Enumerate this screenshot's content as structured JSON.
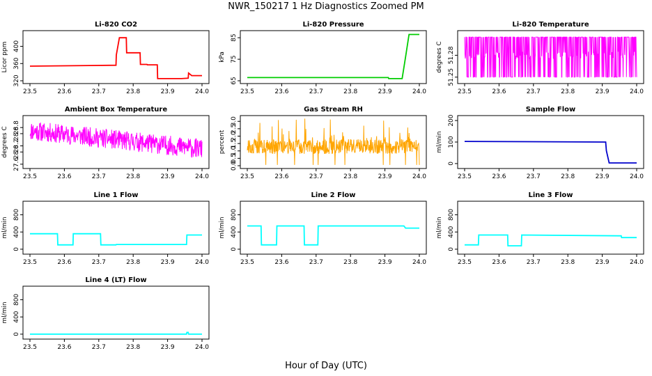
{
  "figure": {
    "title": "NWR_150217  1 Hz Diagnostics Zoomed PM",
    "xlabel": "Hour of Day (UTC)"
  },
  "chart_data": [
    {
      "type": "line",
      "title": "Li-820 CO2",
      "ylabel": "Licor ppm",
      "color": "#ff0000",
      "xlim": [
        23.5,
        24.0
      ],
      "ylim": [
        320,
        430
      ],
      "xticks": [
        "23.5",
        "23.6",
        "23.7",
        "23.8",
        "23.9",
        "24.0"
      ],
      "yticks": [
        "320",
        "360",
        "400"
      ],
      "series": [
        {
          "x": [
            23.5,
            23.75,
            23.751,
            23.76,
            23.78,
            23.781,
            23.82,
            23.821,
            23.84,
            23.841,
            23.87,
            23.871,
            23.94,
            23.96,
            23.961,
            23.97,
            24.0
          ],
          "y": [
            354,
            356,
            380,
            420,
            420,
            385,
            385,
            358,
            358,
            357,
            357,
            325,
            325,
            326,
            338,
            332,
            332
          ]
        }
      ]
    },
    {
      "type": "line",
      "title": "Li-820 Pressure",
      "ylabel": "kPa",
      "color": "#00cc00",
      "xlim": [
        23.5,
        24.0
      ],
      "ylim": [
        65,
        87
      ],
      "xticks": [
        "23.5",
        "23.6",
        "23.7",
        "23.8",
        "23.9",
        "24.0"
      ],
      "yticks": [
        "65",
        "75",
        "85"
      ],
      "series": [
        {
          "x": [
            23.5,
            23.91,
            23.911,
            23.95,
            23.96,
            23.97,
            24.0
          ],
          "y": [
            66.5,
            66.5,
            66.0,
            66.0,
            76,
            86.5,
            86.5
          ]
        }
      ]
    },
    {
      "type": "line",
      "title": "Li-820 Temperature",
      "ylabel": "degrees C",
      "color": "#ff00ff",
      "xlim": [
        23.5,
        24.0
      ],
      "ylim": [
        51.245,
        51.31
      ],
      "xticks": [
        "23.5",
        "23.6",
        "23.7",
        "23.8",
        "23.9",
        "24.0"
      ],
      "yticks": [
        "51.25",
        "51.28"
      ],
      "noise": {
        "kind": "binary",
        "low": 51.25,
        "high": 51.305,
        "mid": 51.28,
        "seed": 7
      }
    },
    {
      "type": "line",
      "title": "Ambient Box Temperature",
      "ylabel": "degrees C",
      "color": "#ff00ff",
      "xlim": [
        23.5,
        24.0
      ],
      "ylim": [
        27.55,
        29.1
      ],
      "xticks": [
        "23.5",
        "23.6",
        "23.7",
        "23.8",
        "23.9",
        "24.0"
      ],
      "yticks": [
        "27.6",
        "28.0",
        "28.2",
        "28.6",
        "28.8"
      ],
      "noise": {
        "kind": "band",
        "start": 28.7,
        "end": 28.1,
        "amp": 0.32,
        "seed": 11
      }
    },
    {
      "type": "line",
      "title": "Gas Stream RH",
      "ylabel": "percent",
      "color": "#ffa500",
      "xlim": [
        23.5,
        24.0
      ],
      "ylim": [
        0.0,
        3.2
      ],
      "xticks": [
        "23.5",
        "23.6",
        "23.7",
        "23.8",
        "23.9",
        "24.0"
      ],
      "yticks": [
        "0.0",
        "0.5",
        "1.0",
        "1.5",
        "2.0",
        "2.5",
        "3.0"
      ],
      "noise": {
        "kind": "spiky",
        "base": 1.3,
        "amp": 0.5,
        "spike": 1.6,
        "seed": 23
      }
    },
    {
      "type": "line",
      "title": "Sample Flow",
      "ylabel": "ml/min",
      "color": "#0000cc",
      "xlim": [
        23.5,
        24.0
      ],
      "ylim": [
        -10,
        210
      ],
      "xticks": [
        "23.5",
        "23.6",
        "23.7",
        "23.8",
        "23.9",
        "24.0"
      ],
      "yticks": [
        "0",
        "100",
        "200"
      ],
      "series": [
        {
          "x": [
            23.5,
            23.91,
            23.912,
            23.92,
            24.0
          ],
          "y": [
            103,
            100,
            60,
            3,
            3
          ]
        }
      ]
    },
    {
      "type": "line",
      "title": "Line 1 Flow",
      "ylabel": "ml/min",
      "color": "#00ffff",
      "xlim": [
        23.5,
        24.0
      ],
      "ylim": [
        -50,
        1050
      ],
      "xticks": [
        "23.5",
        "23.6",
        "23.7",
        "23.8",
        "23.9",
        "24.0"
      ],
      "yticks": [
        "0",
        "400",
        "800"
      ],
      "series": [
        {
          "x": [
            23.5,
            23.58,
            23.581,
            23.625,
            23.626,
            23.705,
            23.706,
            23.75,
            23.751,
            23.955,
            23.956,
            24.0
          ],
          "y": [
            360,
            360,
            100,
            100,
            360,
            360,
            100,
            100,
            110,
            110,
            330,
            330
          ]
        }
      ]
    },
    {
      "type": "line",
      "title": "Line 2 Flow",
      "ylabel": "ml/min",
      "color": "#00ffff",
      "xlim": [
        23.5,
        24.0
      ],
      "ylim": [
        -50,
        1050
      ],
      "xticks": [
        "23.5",
        "23.6",
        "23.7",
        "23.8",
        "23.9",
        "24.0"
      ],
      "yticks": [
        "0",
        "400",
        "800"
      ],
      "series": [
        {
          "x": [
            23.5,
            23.54,
            23.541,
            23.585,
            23.586,
            23.665,
            23.666,
            23.705,
            23.706,
            23.955,
            23.96,
            24.0
          ],
          "y": [
            540,
            540,
            100,
            100,
            540,
            540,
            100,
            100,
            540,
            540,
            490,
            490
          ]
        }
      ]
    },
    {
      "type": "line",
      "title": "Line 3 Flow",
      "ylabel": "ml/min",
      "color": "#00ffff",
      "xlim": [
        23.5,
        24.0
      ],
      "ylim": [
        -50,
        1050
      ],
      "xticks": [
        "23.5",
        "23.6",
        "23.7",
        "23.8",
        "23.9",
        "24.0"
      ],
      "yticks": [
        "0",
        "400",
        "800"
      ],
      "series": [
        {
          "x": [
            23.5,
            23.54,
            23.541,
            23.625,
            23.626,
            23.665,
            23.666,
            23.955,
            23.956,
            24.0
          ],
          "y": [
            100,
            100,
            330,
            330,
            80,
            80,
            330,
            310,
            270,
            270
          ]
        }
      ]
    },
    {
      "type": "line",
      "title": "Line 4 (LT) Flow",
      "ylabel": "ml/min",
      "color": "#00ffff",
      "xlim": [
        23.5,
        24.0
      ],
      "ylim": [
        -50,
        1050
      ],
      "xticks": [
        "23.5",
        "23.6",
        "23.7",
        "23.8",
        "23.9",
        "24.0"
      ],
      "yticks": [
        "0",
        "400",
        "800"
      ],
      "series": [
        {
          "x": [
            23.5,
            23.955,
            23.956,
            23.96,
            23.961,
            24.0
          ],
          "y": [
            0,
            0,
            40,
            40,
            0,
            0
          ]
        }
      ]
    }
  ]
}
